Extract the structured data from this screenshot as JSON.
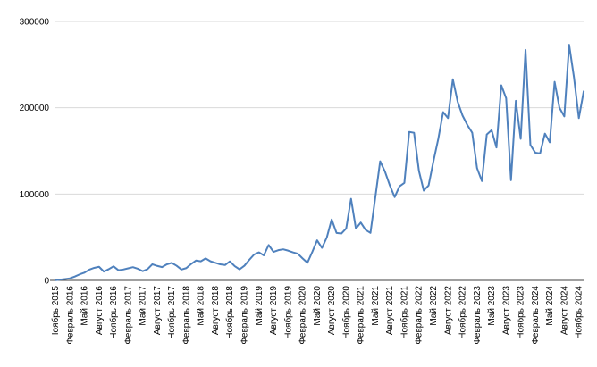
{
  "chart_data": {
    "type": "line",
    "title": "",
    "xlabel": "",
    "ylabel": "",
    "background": "#ffffff",
    "grid": true,
    "grid_color": "#d9d9d9",
    "axis_color": "#404040",
    "label_color": "#000000",
    "legend": "none",
    "y_axis": {
      "min": 0,
      "max": 300000,
      "ticks": [
        0,
        100000,
        200000,
        300000
      ],
      "tick_labels": [
        "0",
        "100000",
        "200000",
        "300000"
      ]
    },
    "x_axis": {
      "tick_every_months": 3,
      "tick_labels": [
        "Ноябрь 2015",
        "Февраль 2016",
        "Май 2016",
        "Август 2016",
        "Ноябрь 2016",
        "Февраль 2017",
        "Май 2017",
        "Август 2017",
        "Ноябрь 2017",
        "Февраль 2018",
        "Май 2018",
        "Август 2018",
        "Ноябрь 2018",
        "Февраль 2019",
        "Май 2019",
        "Август 2019",
        "Ноябрь 2019",
        "Февраль 2020",
        "Май 2020",
        "Август 2020",
        "Ноябрь 2020",
        "Февраль 2021",
        "Май 2021",
        "Август 2021",
        "Ноябрь 2021",
        "Февраль 2022",
        "Май 2022",
        "Август 2022",
        "Ноябрь 2022",
        "Февраль 2023",
        "Май 2023",
        "Август 2023",
        "Ноябрь 2023",
        "Февраль 2024",
        "Май 2024",
        "Август 2024",
        "Ноябрь 2024"
      ]
    },
    "series": [
      {
        "name": "monthly-values",
        "color": "#4f81bd",
        "stroke_width": 2,
        "start_month": "2015-11",
        "end_month": "2024-12",
        "frequency": "monthly",
        "values": [
          300,
          900,
          1600,
          2400,
          4500,
          7000,
          9000,
          12500,
          14500,
          15800,
          10200,
          13000,
          16300,
          11800,
          12600,
          14000,
          15300,
          13500,
          10700,
          13000,
          18700,
          16800,
          15400,
          18600,
          20300,
          17000,
          12600,
          14200,
          19000,
          23000,
          22100,
          25500,
          22100,
          20400,
          18600,
          17800,
          22000,
          16500,
          12800,
          17000,
          23800,
          30000,
          32500,
          29000,
          41000,
          33000,
          35000,
          36000,
          34500,
          32500,
          31000,
          25500,
          20400,
          33000,
          46400,
          37700,
          49800,
          70600,
          55000,
          54300,
          60200,
          94500,
          60000,
          67000,
          58500,
          55000,
          96000,
          138000,
          126000,
          110000,
          96500,
          109000,
          113000,
          172000,
          171000,
          127000,
          104000,
          110000,
          138000,
          164000,
          195000,
          188000,
          233000,
          207000,
          191000,
          180000,
          171000,
          130000,
          115000,
          169000,
          174000,
          154000,
          226000,
          211000,
          116000,
          208000,
          164000,
          267000,
          157000,
          148000,
          147000,
          170000,
          160000,
          230000,
          200000,
          190000,
          273000,
          235000,
          188000,
          219000
        ]
      }
    ]
  }
}
